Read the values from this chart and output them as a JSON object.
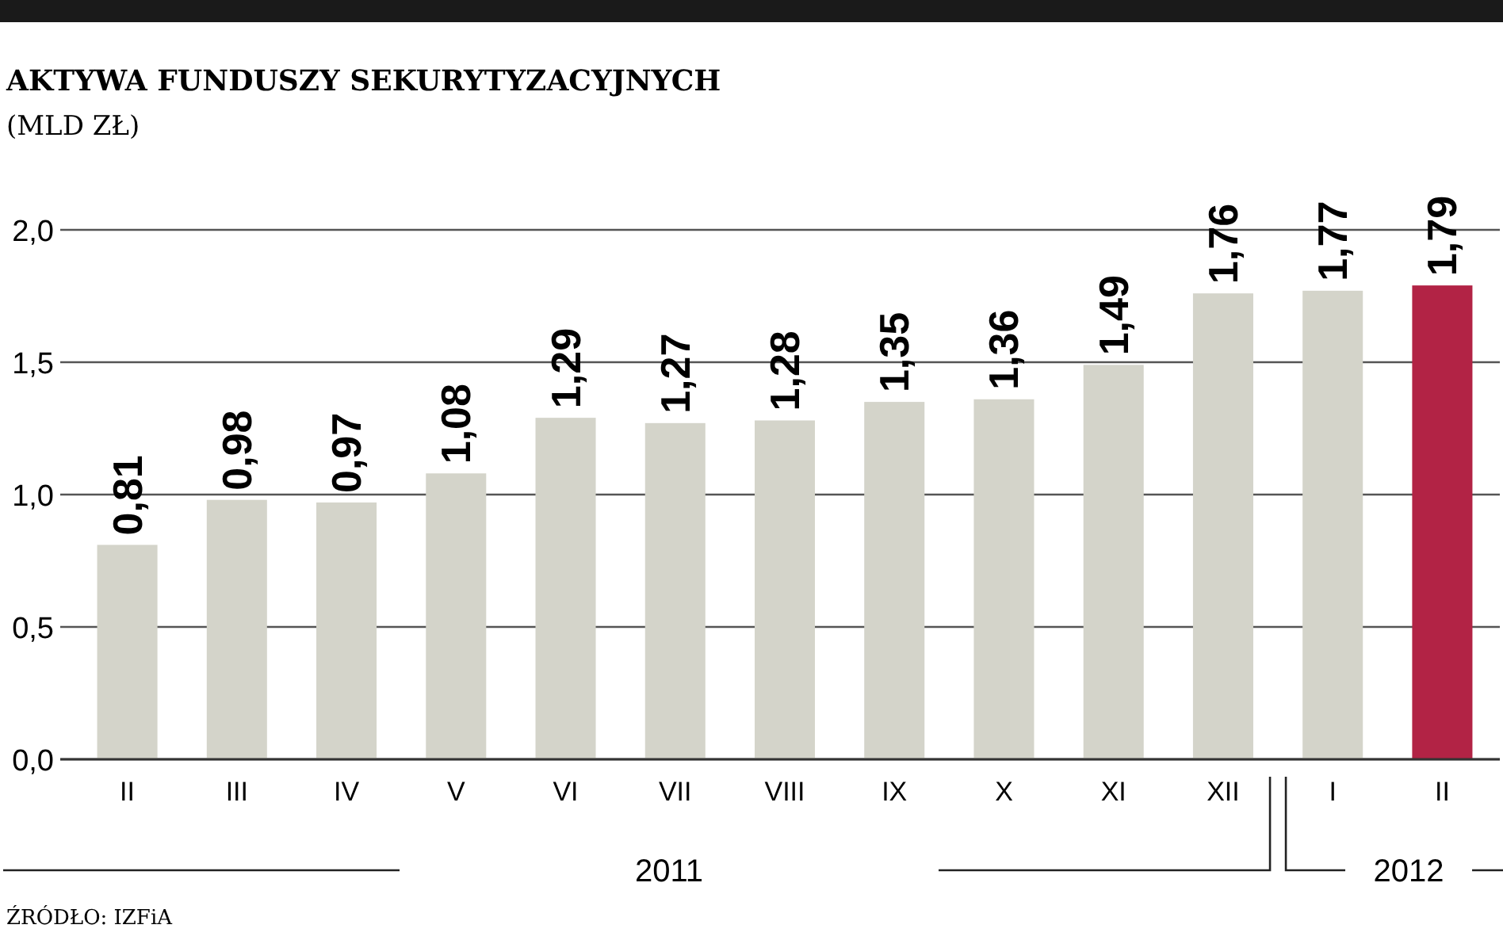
{
  "chart_data": {
    "type": "bar",
    "title": "AKTYWA FUNDUSZY SEKURYTYZACYJNYCH",
    "subtitle": "(MLD ZŁ)",
    "categories": [
      "II",
      "III",
      "IV",
      "V",
      "VI",
      "VII",
      "VIII",
      "IX",
      "X",
      "XI",
      "XII",
      "I",
      "II"
    ],
    "values": [
      0.81,
      0.98,
      0.97,
      1.08,
      1.29,
      1.27,
      1.28,
      1.35,
      1.36,
      1.49,
      1.76,
      1.77,
      1.79
    ],
    "colors": [
      "#d4d4ca",
      "#d4d4ca",
      "#d4d4ca",
      "#d4d4ca",
      "#d4d4ca",
      "#d4d4ca",
      "#d4d4ca",
      "#d4d4ca",
      "#d4d4ca",
      "#d4d4ca",
      "#d4d4ca",
      "#d4d4ca",
      "#b22345"
    ],
    "ylim": [
      0,
      2.0
    ],
    "yticks": [
      {
        "value": 0,
        "label": "0,0"
      },
      {
        "value": 0.5,
        "label": "0,5"
      },
      {
        "value": 1.0,
        "label": "1,0"
      },
      {
        "value": 1.5,
        "label": "1,5"
      },
      {
        "value": 2.0,
        "label": "2,0"
      }
    ],
    "value_labels": [
      "0,81",
      "0,98",
      "0,97",
      "1,08",
      "1,29",
      "1,27",
      "1,28",
      "1,35",
      "1,36",
      "1,49",
      "1,76",
      "1,77",
      "1,79"
    ],
    "grid": "y",
    "annotations": [
      "2011",
      "2012",
      "ŹRÓDŁO: IZFiA"
    ]
  }
}
